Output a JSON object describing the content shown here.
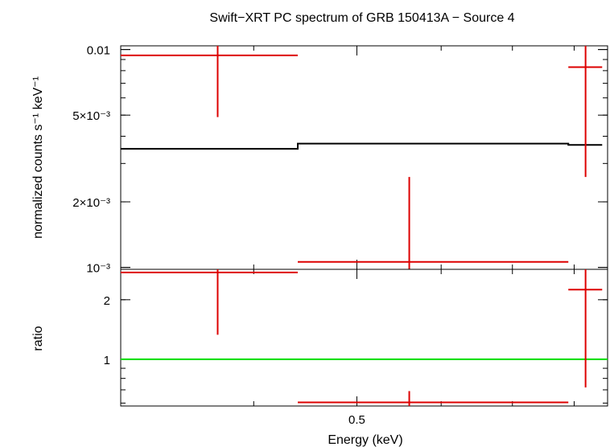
{
  "chart_data": [
    {
      "type": "scatter",
      "panel": "spectrum",
      "title": "Swift−XRT PC spectrum of GRB 150413A − Source 4",
      "ylabel": "normalized counts s⁻¹ keV⁻¹",
      "yscale": "log",
      "ylim": [
        0.00098,
        0.0104
      ],
      "y_ticklabels": [
        {
          "value": 0.01,
          "label": "0.01"
        },
        {
          "value": 0.005,
          "label": "5×10⁻³"
        },
        {
          "value": 0.002,
          "label": "2×10⁻³"
        },
        {
          "value": 0.001,
          "label": "10⁻³"
        }
      ],
      "series": [
        {
          "kind": "data_with_errors",
          "color": "#dd0000",
          "points": [
            {
              "x_low": 0.3,
              "x_high": 0.44,
              "x": 0.37,
              "y": 0.0094,
              "y_low": 0.0049,
              "y_high": 0.0104
            },
            {
              "x_low": 0.44,
              "x_high": 0.79,
              "x": 0.56,
              "y": 0.00106,
              "y_low": 0.00098,
              "y_high": 0.0026
            },
            {
              "x_low": 0.79,
              "x_high": 0.85,
              "x": 0.82,
              "y": 0.0083,
              "y_low": 0.0026,
              "y_high": 0.0104
            }
          ]
        },
        {
          "kind": "model",
          "color": "#000000",
          "steps": [
            {
              "x_low": 0.3,
              "x_high": 0.44,
              "y": 0.0035
            },
            {
              "x_low": 0.44,
              "x_high": 0.79,
              "y": 0.0037
            },
            {
              "x_low": 0.79,
              "x_high": 0.85,
              "y": 0.00365
            }
          ]
        }
      ]
    },
    {
      "type": "scatter",
      "panel": "ratio",
      "ylabel": "ratio",
      "yscale": "log",
      "ylim": [
        0.58,
        2.85
      ],
      "y_ticklabels": [
        {
          "value": 2,
          "label": "2"
        },
        {
          "value": 1,
          "label": "1"
        }
      ],
      "xlabel": "Energy (keV)",
      "xscale": "log",
      "xlim": [
        0.3,
        0.86
      ],
      "x_ticklabels": [
        {
          "value": 0.5,
          "label": "0.5"
        }
      ],
      "reference_line": {
        "y": 1,
        "color": "#00dd00"
      },
      "series": [
        {
          "kind": "ratio_with_errors",
          "color": "#dd0000",
          "points": [
            {
              "x_low": 0.3,
              "x_high": 0.44,
              "x": 0.37,
              "y": 2.75,
              "y_low": 1.33,
              "y_high": 2.85
            },
            {
              "x_low": 0.44,
              "x_high": 0.79,
              "x": 0.56,
              "y": 0.605,
              "y_low": 0.58,
              "y_high": 0.69
            },
            {
              "x_low": 0.79,
              "x_high": 0.85,
              "x": 0.82,
              "y": 2.25,
              "y_low": 0.72,
              "y_high": 2.85
            }
          ]
        }
      ]
    }
  ]
}
